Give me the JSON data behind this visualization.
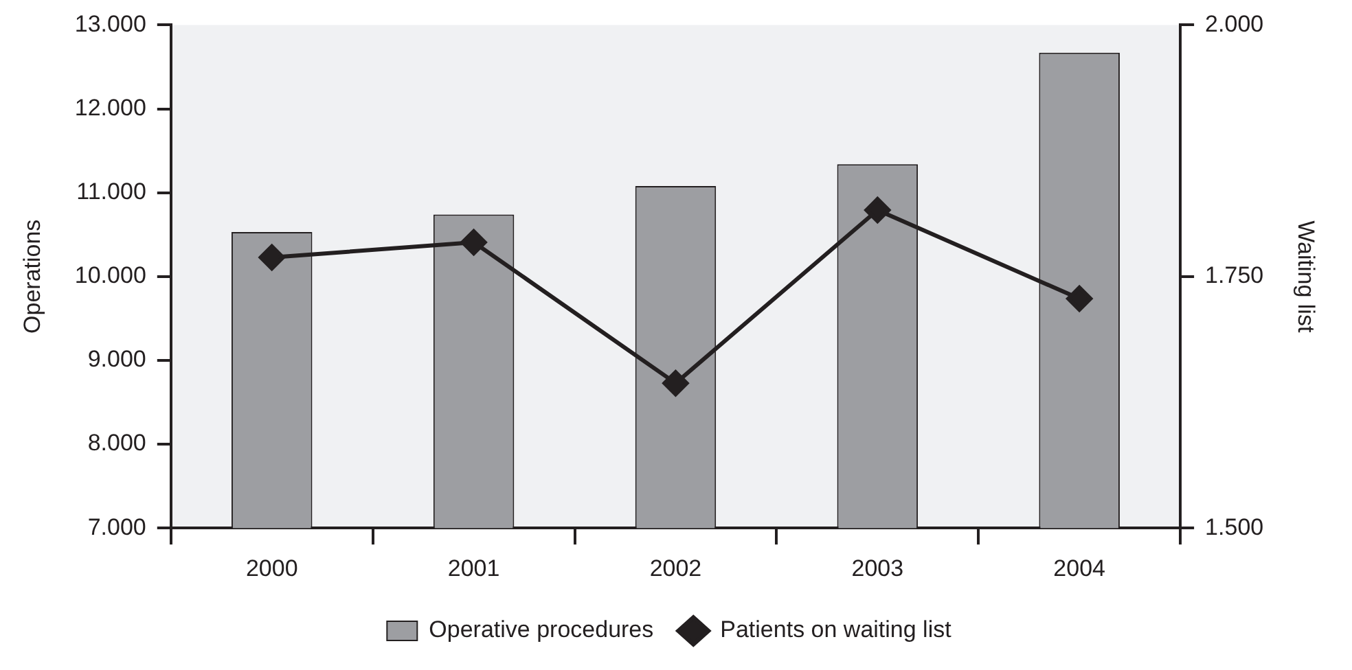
{
  "chart_data": {
    "type": "bar",
    "categories": [
      "2000",
      "2001",
      "2002",
      "2003",
      "2004"
    ],
    "series": [
      {
        "name": "Operative procedures",
        "color": "#9d9ea2",
        "values": [
          10530,
          10740,
          11080,
          11340,
          12670
        ]
      },
      {
        "name": "Patients on waiting list",
        "type": "line",
        "axis": "y2",
        "color": "#231f20",
        "values": [
          1769,
          1784,
          1644,
          1816,
          1728
        ]
      }
    ],
    "ylabel": "Operations",
    "y2label": "Waiting list",
    "ylim": [
      7000,
      13000
    ],
    "yticks": [
      {
        "value": 7000,
        "label": "7.000"
      },
      {
        "value": 8000,
        "label": "8.000"
      },
      {
        "value": 9000,
        "label": "9.000"
      },
      {
        "value": 10000,
        "label": "10.000"
      },
      {
        "value": 11000,
        "label": "11.000"
      },
      {
        "value": 12000,
        "label": "12.000"
      },
      {
        "value": 13000,
        "label": "13.000"
      }
    ],
    "y2lim": [
      1500,
      2000
    ],
    "y2ticks": [
      {
        "value": 1500,
        "label": "1.500"
      },
      {
        "value": 1750,
        "label": "1.750"
      },
      {
        "value": 2000,
        "label": "2.000"
      }
    ],
    "marker": "diamond",
    "legend": "bottom"
  }
}
